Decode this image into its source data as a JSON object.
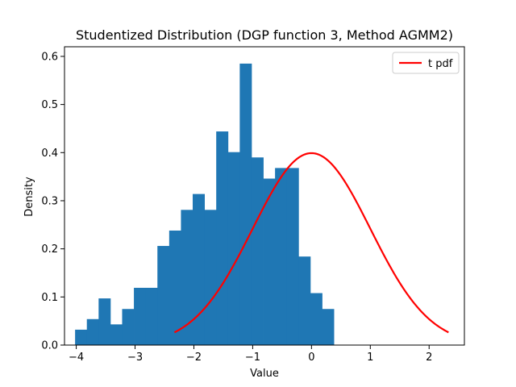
{
  "chart_data": {
    "type": "bar",
    "title": "Studentized Distribution (DGP function 3, Method AGMM2)",
    "xlabel": "Value",
    "ylabel": "Density",
    "xlim": [
      -4.2,
      2.6
    ],
    "ylim": [
      0,
      0.62
    ],
    "xticks": [
      -4,
      -3,
      -2,
      -1,
      0,
      1,
      2
    ],
    "yticks": [
      0.0,
      0.1,
      0.2,
      0.3,
      0.4,
      0.5,
      0.6
    ],
    "grid": false,
    "legend_position": "top-right",
    "histogram": {
      "name": "",
      "color": "#1f77b4",
      "bins": [
        {
          "x0": -4.02,
          "x1": -3.82,
          "density": 0.032
        },
        {
          "x0": -3.82,
          "x1": -3.62,
          "density": 0.054
        },
        {
          "x0": -3.62,
          "x1": -3.42,
          "density": 0.097
        },
        {
          "x0": -3.42,
          "x1": -3.22,
          "density": 0.043
        },
        {
          "x0": -3.22,
          "x1": -3.02,
          "density": 0.075
        },
        {
          "x0": -3.02,
          "x1": -2.82,
          "density": 0.119
        },
        {
          "x0": -2.82,
          "x1": -2.62,
          "density": 0.119
        },
        {
          "x0": -2.62,
          "x1": -2.42,
          "density": 0.206
        },
        {
          "x0": -2.42,
          "x1": -2.22,
          "density": 0.238
        },
        {
          "x0": -2.22,
          "x1": -2.02,
          "density": 0.281
        },
        {
          "x0": -2.02,
          "x1": -1.82,
          "density": 0.314
        },
        {
          "x0": -1.82,
          "x1": -1.62,
          "density": 0.281
        },
        {
          "x0": -1.62,
          "x1": -1.42,
          "density": 0.444
        },
        {
          "x0": -1.42,
          "x1": -1.22,
          "density": 0.401
        },
        {
          "x0": -1.22,
          "x1": -1.02,
          "density": 0.585
        },
        {
          "x0": -1.02,
          "x1": -0.82,
          "density": 0.39
        },
        {
          "x0": -0.82,
          "x1": -0.62,
          "density": 0.346
        },
        {
          "x0": -0.62,
          "x1": -0.42,
          "density": 0.368
        },
        {
          "x0": -0.42,
          "x1": -0.22,
          "density": 0.368
        },
        {
          "x0": -0.22,
          "x1": -0.02,
          "density": 0.184
        },
        {
          "x0": -0.02,
          "x1": 0.18,
          "density": 0.108
        },
        {
          "x0": 0.18,
          "x1": 0.38,
          "density": 0.075
        }
      ]
    },
    "series": [
      {
        "name": "t pdf",
        "type": "line",
        "color": "#ff0000",
        "x_range": [
          -2.33,
          2.33
        ],
        "function": "t distribution pdf, df large (approx. standard normal)"
      }
    ]
  }
}
